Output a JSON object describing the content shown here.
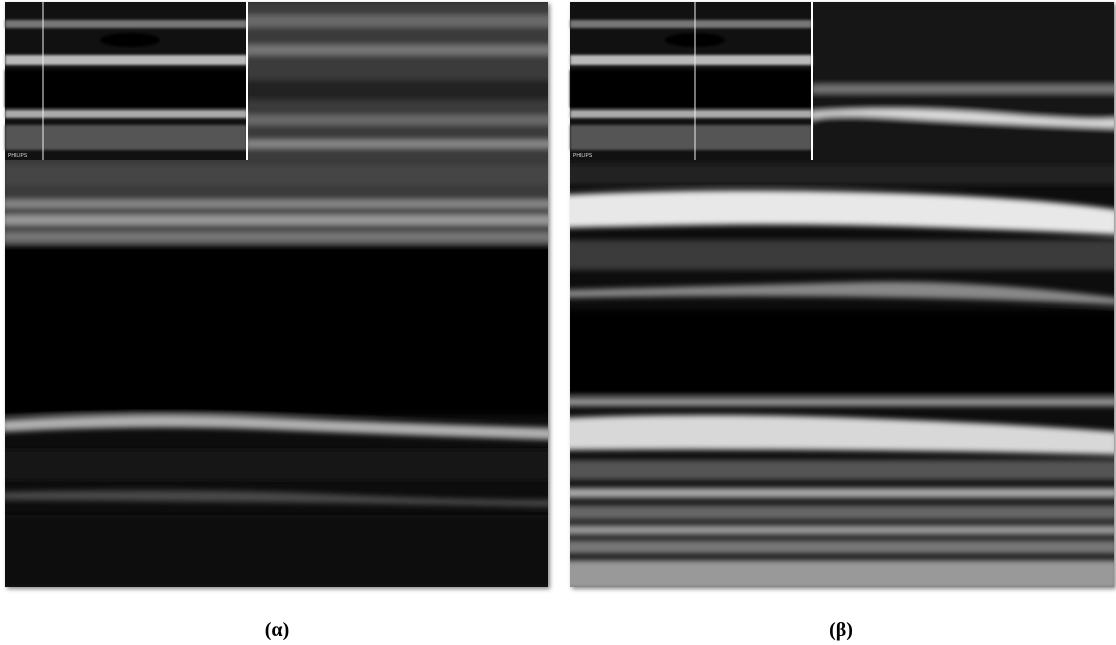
{
  "panels": [
    {
      "inset_text": "PHILIPS",
      "caption": "(α)"
    },
    {
      "inset_text": "PHILIPS",
      "caption": "(β)"
    }
  ]
}
